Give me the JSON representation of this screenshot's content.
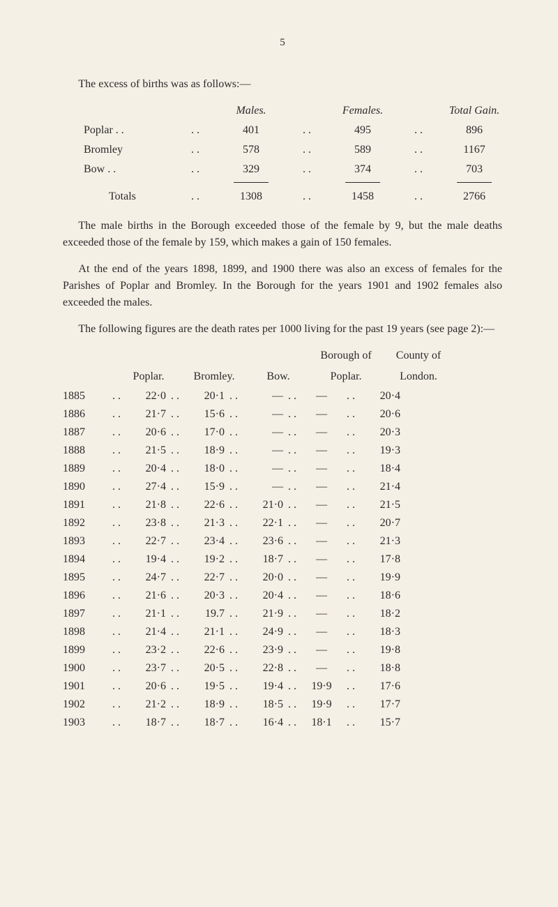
{
  "page": {
    "number": "5"
  },
  "intro": "The excess of births was as follows:—",
  "births_table": {
    "type": "table",
    "headers": {
      "males": "Males.",
      "females": "Females.",
      "total_gain": "Total Gain."
    },
    "rows": [
      {
        "label": "Poplar . .",
        "males": "401",
        "females": "495",
        "gain": "896"
      },
      {
        "label": "Bromley",
        "males": "578",
        "females": "589",
        "gain": "1167"
      },
      {
        "label": "Bow  . .",
        "males": "329",
        "females": "374",
        "gain": "703"
      }
    ],
    "totals": {
      "label": "Totals",
      "males": "1308",
      "females": "1458",
      "gain": "2766"
    },
    "dots": ". ."
  },
  "para1": "The male births in the Borough exceeded those of the female by 9, but the male deaths exceeded those of the female by 159, which makes a gain of 150 females.",
  "para2": "At the end of the years 1898, 1899, and 1900 there was also an excess of females for the Parishes of Poplar and Bromley. In the Borough for the years 1901 and 1902 females also exceeded the males.",
  "para3": "The following figures are the death rates per 1000 living for the past 19 years (see page 2):—",
  "rates_table": {
    "type": "table",
    "background_color": "#f5f0e6",
    "text_color": "#2a2a2a",
    "font_size": 16,
    "header_top": {
      "borough": "Borough of",
      "london": "County of"
    },
    "headers": {
      "poplar": "Poplar.",
      "bromley": "Bromley.",
      "bow": "Bow.",
      "borough": "Poplar.",
      "london": "London."
    },
    "dots": ". .",
    "rows": [
      {
        "year": "1885",
        "poplar": "22·0",
        "bromley": "20·1",
        "bow": "—",
        "borough": "—",
        "london": "20·4"
      },
      {
        "year": "1886",
        "poplar": "21·7",
        "bromley": "15·6",
        "bow": "—",
        "borough": "—",
        "london": "20·6"
      },
      {
        "year": "1887",
        "poplar": "20·6",
        "bromley": "17·0",
        "bow": "—",
        "borough": "—",
        "london": "20·3"
      },
      {
        "year": "1888",
        "poplar": "21·5",
        "bromley": "18·9",
        "bow": "—",
        "borough": "—",
        "london": "19·3"
      },
      {
        "year": "1889",
        "poplar": "20·4",
        "bromley": "18·0",
        "bow": "—",
        "borough": "—",
        "london": "18·4"
      },
      {
        "year": "1890",
        "poplar": "27·4",
        "bromley": "15·9",
        "bow": "—",
        "borough": "—",
        "london": "21·4"
      },
      {
        "year": "1891",
        "poplar": "21·8",
        "bromley": "22·6",
        "bow": "21·0",
        "borough": "—",
        "london": "21·5"
      },
      {
        "year": "1892",
        "poplar": "23·8",
        "bromley": "21·3",
        "bow": "22·1",
        "borough": "—",
        "london": "20·7"
      },
      {
        "year": "1893",
        "poplar": "22·7",
        "bromley": "23·4",
        "bow": "23·6",
        "borough": "—",
        "london": "21·3"
      },
      {
        "year": "1894",
        "poplar": "19·4",
        "bromley": "19·2",
        "bow": "18·7",
        "borough": "—",
        "london": "17·8"
      },
      {
        "year": "1895",
        "poplar": "24·7",
        "bromley": "22·7",
        "bow": "20·0",
        "borough": "—",
        "london": "19·9"
      },
      {
        "year": "1896",
        "poplar": "21·6",
        "bromley": "20·3",
        "bow": "20·4",
        "borough": "—",
        "london": "18·6"
      },
      {
        "year": "1897",
        "poplar": "21·1",
        "bromley": "19.7",
        "bow": "21·9",
        "borough": "—",
        "london": "18·2"
      },
      {
        "year": "1898",
        "poplar": "21·4",
        "bromley": "21·1",
        "bow": "24·9",
        "borough": "—",
        "london": "18·3"
      },
      {
        "year": "1899",
        "poplar": "23·2",
        "bromley": "22·6",
        "bow": "23·9",
        "borough": "—",
        "london": "19·8"
      },
      {
        "year": "1900",
        "poplar": "23·7",
        "bromley": "20·5",
        "bow": "22·8",
        "borough": "—",
        "london": "18·8"
      },
      {
        "year": "1901",
        "poplar": "20·6",
        "bromley": "19·5",
        "bow": "19·4",
        "borough": "19·9",
        "london": "17·6"
      },
      {
        "year": "1902",
        "poplar": "21·2",
        "bromley": "18·9",
        "bow": "18·5",
        "borough": "19·9",
        "london": "17·7"
      },
      {
        "year": "1903",
        "poplar": "18·7",
        "bromley": "18·7",
        "bow": "16·4",
        "borough": "18·1",
        "london": "15·7"
      }
    ]
  }
}
